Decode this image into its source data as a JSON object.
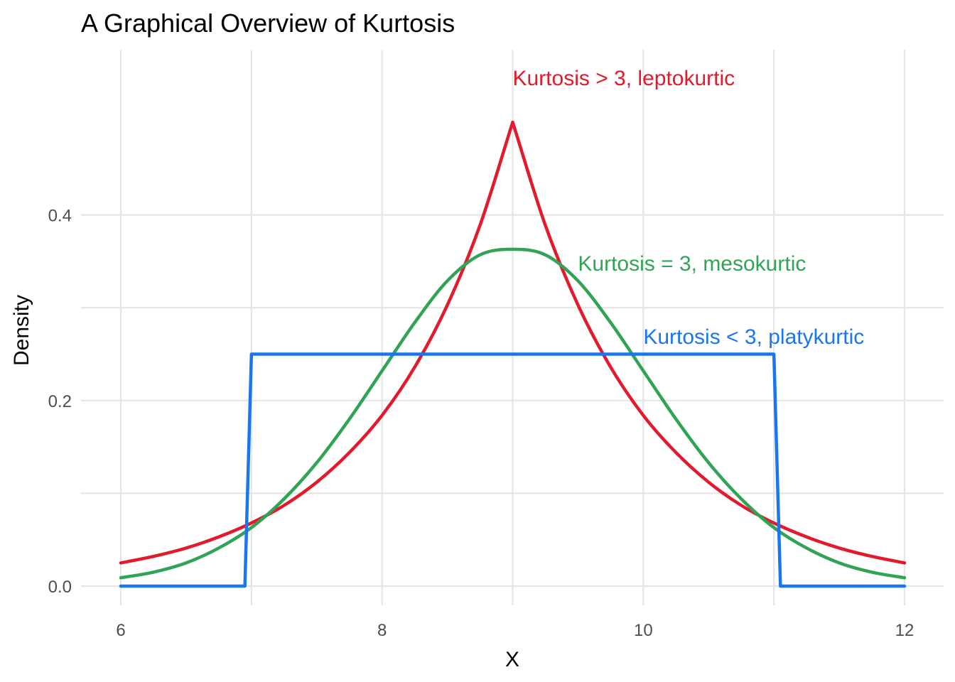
{
  "chart_data": {
    "type": "line",
    "title": "A Graphical Overview of Kurtosis",
    "xlabel": "X",
    "ylabel": "Density",
    "xlim": [
      6,
      12
    ],
    "ylim": [
      0,
      0.5
    ],
    "x_ticks": [
      6,
      8,
      10,
      12
    ],
    "x_tick_labels": [
      "6",
      "8",
      "10",
      "12"
    ],
    "y_ticks": [
      0.0,
      0.2,
      0.4
    ],
    "y_tick_labels": [
      "0.0",
      "0.2",
      "0.4"
    ],
    "grid": true,
    "legend": "none",
    "series": [
      {
        "color": "#e31a2c",
        "x": [
          6.0,
          6.25,
          6.5,
          6.75,
          7.0,
          7.25,
          7.5,
          7.75,
          8.0,
          8.25,
          8.5,
          8.75,
          9.0,
          9.25,
          9.5,
          9.75,
          10.0,
          10.25,
          10.5,
          10.75,
          11.0,
          11.25,
          11.5,
          11.75,
          12.0
        ],
        "values": [
          0.025,
          0.032,
          0.041,
          0.053,
          0.068,
          0.087,
          0.112,
          0.144,
          0.184,
          0.236,
          0.303,
          0.389,
          0.5,
          0.389,
          0.303,
          0.236,
          0.184,
          0.144,
          0.112,
          0.087,
          0.068,
          0.053,
          0.041,
          0.032,
          0.025
        ]
      },
      {
        "color": "#31a354",
        "x": [
          6.0,
          6.25,
          6.5,
          6.75,
          7.0,
          7.25,
          7.5,
          7.75,
          8.0,
          8.25,
          8.5,
          8.75,
          9.0,
          9.25,
          9.5,
          9.75,
          10.0,
          10.25,
          10.5,
          10.75,
          11.0,
          11.25,
          11.5,
          11.75,
          12.0
        ],
        "values": [
          0.009,
          0.015,
          0.025,
          0.041,
          0.063,
          0.094,
          0.133,
          0.18,
          0.232,
          0.284,
          0.329,
          0.357,
          0.363,
          0.357,
          0.329,
          0.284,
          0.232,
          0.18,
          0.133,
          0.094,
          0.063,
          0.041,
          0.025,
          0.015,
          0.009
        ]
      },
      {
        "color": "#1a75f0",
        "x": [
          6.0,
          6.95,
          7.0,
          11.0,
          11.05,
          12.0
        ],
        "values": [
          0.0,
          0.0,
          0.25,
          0.25,
          0.0,
          0.0
        ]
      }
    ],
    "annotations": [
      {
        "text": "Kurtosis > 3, leptokurtic",
        "x": 9.0,
        "y": 0.54,
        "color": "#e31a2c"
      },
      {
        "text": "Kurtosis = 3, mesokurtic",
        "x": 9.5,
        "y": 0.34,
        "color": "#31a354"
      },
      {
        "text": "Kurtosis < 3, platykurtic",
        "x": 10.0,
        "y": 0.261,
        "color": "#1a75f0"
      }
    ]
  }
}
